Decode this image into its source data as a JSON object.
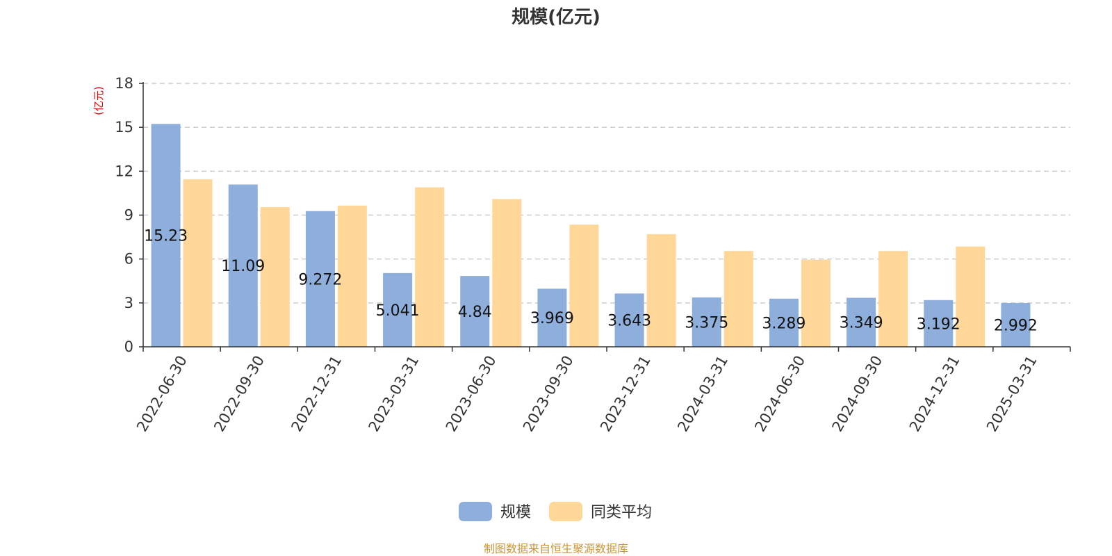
{
  "colors": {
    "series_1": "#8eaedb",
    "series_2": "#ffd899",
    "axis": "#333333",
    "grid": "#cccccc",
    "unit_label": "#e00000",
    "source": "#c9973a"
  },
  "chart_data": {
    "type": "bar",
    "title": "规模(亿元)",
    "ylabel": "(亿元)",
    "xlabel": "",
    "ylim": [
      0,
      18
    ],
    "yticks": [
      0,
      3,
      6,
      9,
      12,
      15,
      18
    ],
    "grid": true,
    "legend_position": "bottom-center",
    "categories": [
      "2022-06-30",
      "2022-09-30",
      "2022-12-31",
      "2023-03-31",
      "2023-06-30",
      "2023-09-30",
      "2023-12-31",
      "2024-03-31",
      "2024-06-30",
      "2024-09-30",
      "2024-12-31",
      "2025-03-31"
    ],
    "series": [
      {
        "name": "规模",
        "values": [
          15.23,
          11.09,
          9.272,
          5.041,
          4.84,
          3.969,
          3.643,
          3.375,
          3.289,
          3.349,
          3.192,
          2.992
        ],
        "labels": [
          "15.23",
          "11.09",
          "9.272",
          "5.041",
          "4.84",
          "3.969",
          "3.643",
          "3.375",
          "3.289",
          "3.349",
          "3.192",
          "2.992"
        ]
      },
      {
        "name": "同类平均",
        "values": [
          11.45,
          9.55,
          9.65,
          10.9,
          10.1,
          8.35,
          7.7,
          6.55,
          5.95,
          6.55,
          6.85,
          null
        ]
      }
    ]
  },
  "source_note": "制图数据来自恒生聚源数据库"
}
